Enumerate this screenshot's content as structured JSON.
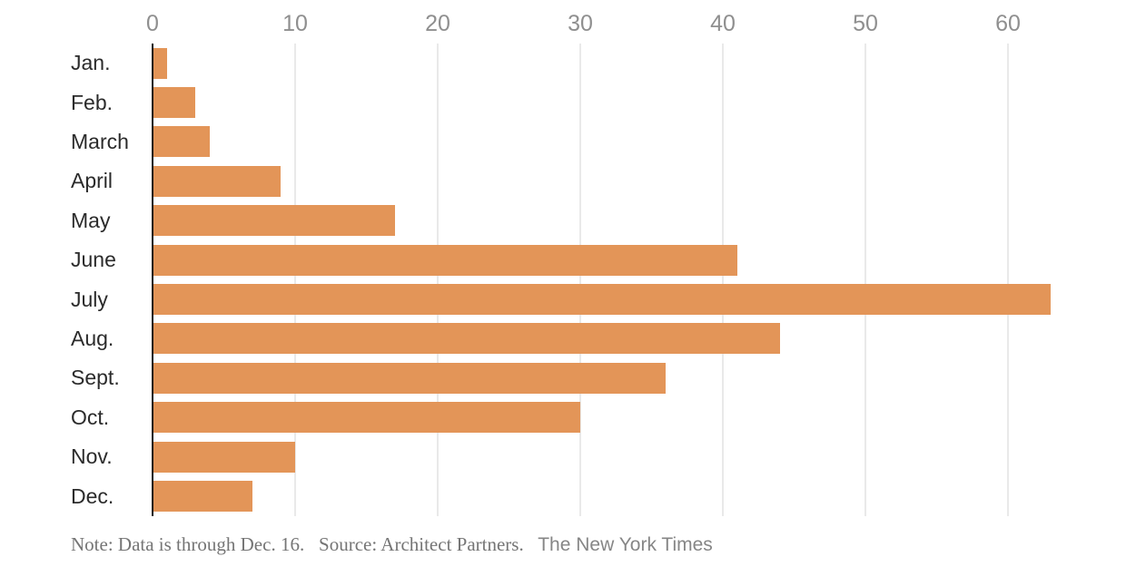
{
  "chart_data": {
    "type": "bar",
    "orientation": "horizontal",
    "title": "",
    "xlabel": "",
    "ylabel": "",
    "categories": [
      "Jan.",
      "Feb.",
      "March",
      "April",
      "May",
      "June",
      "July",
      "Aug.",
      "Sept.",
      "Oct.",
      "Nov.",
      "Dec."
    ],
    "values": [
      1,
      3,
      4,
      9,
      17,
      41,
      63,
      44,
      36,
      30,
      10,
      7
    ],
    "x_ticks": [
      0,
      10,
      20,
      30,
      40,
      50,
      60
    ],
    "xlim": [
      0,
      69.7
    ],
    "grid": "vertical-gridlines",
    "legend": "none",
    "bar_color": "#e39558",
    "axis_line_color": "#161616",
    "gridline_color": "#e9e9e9",
    "tick_label_color": "#8f8f8f",
    "category_label_color": "#2b2b2b"
  },
  "footer": {
    "note": "Note: Data is through Dec. 16.",
    "source": "Source: Architect Partners.",
    "credit": "The New York Times"
  }
}
